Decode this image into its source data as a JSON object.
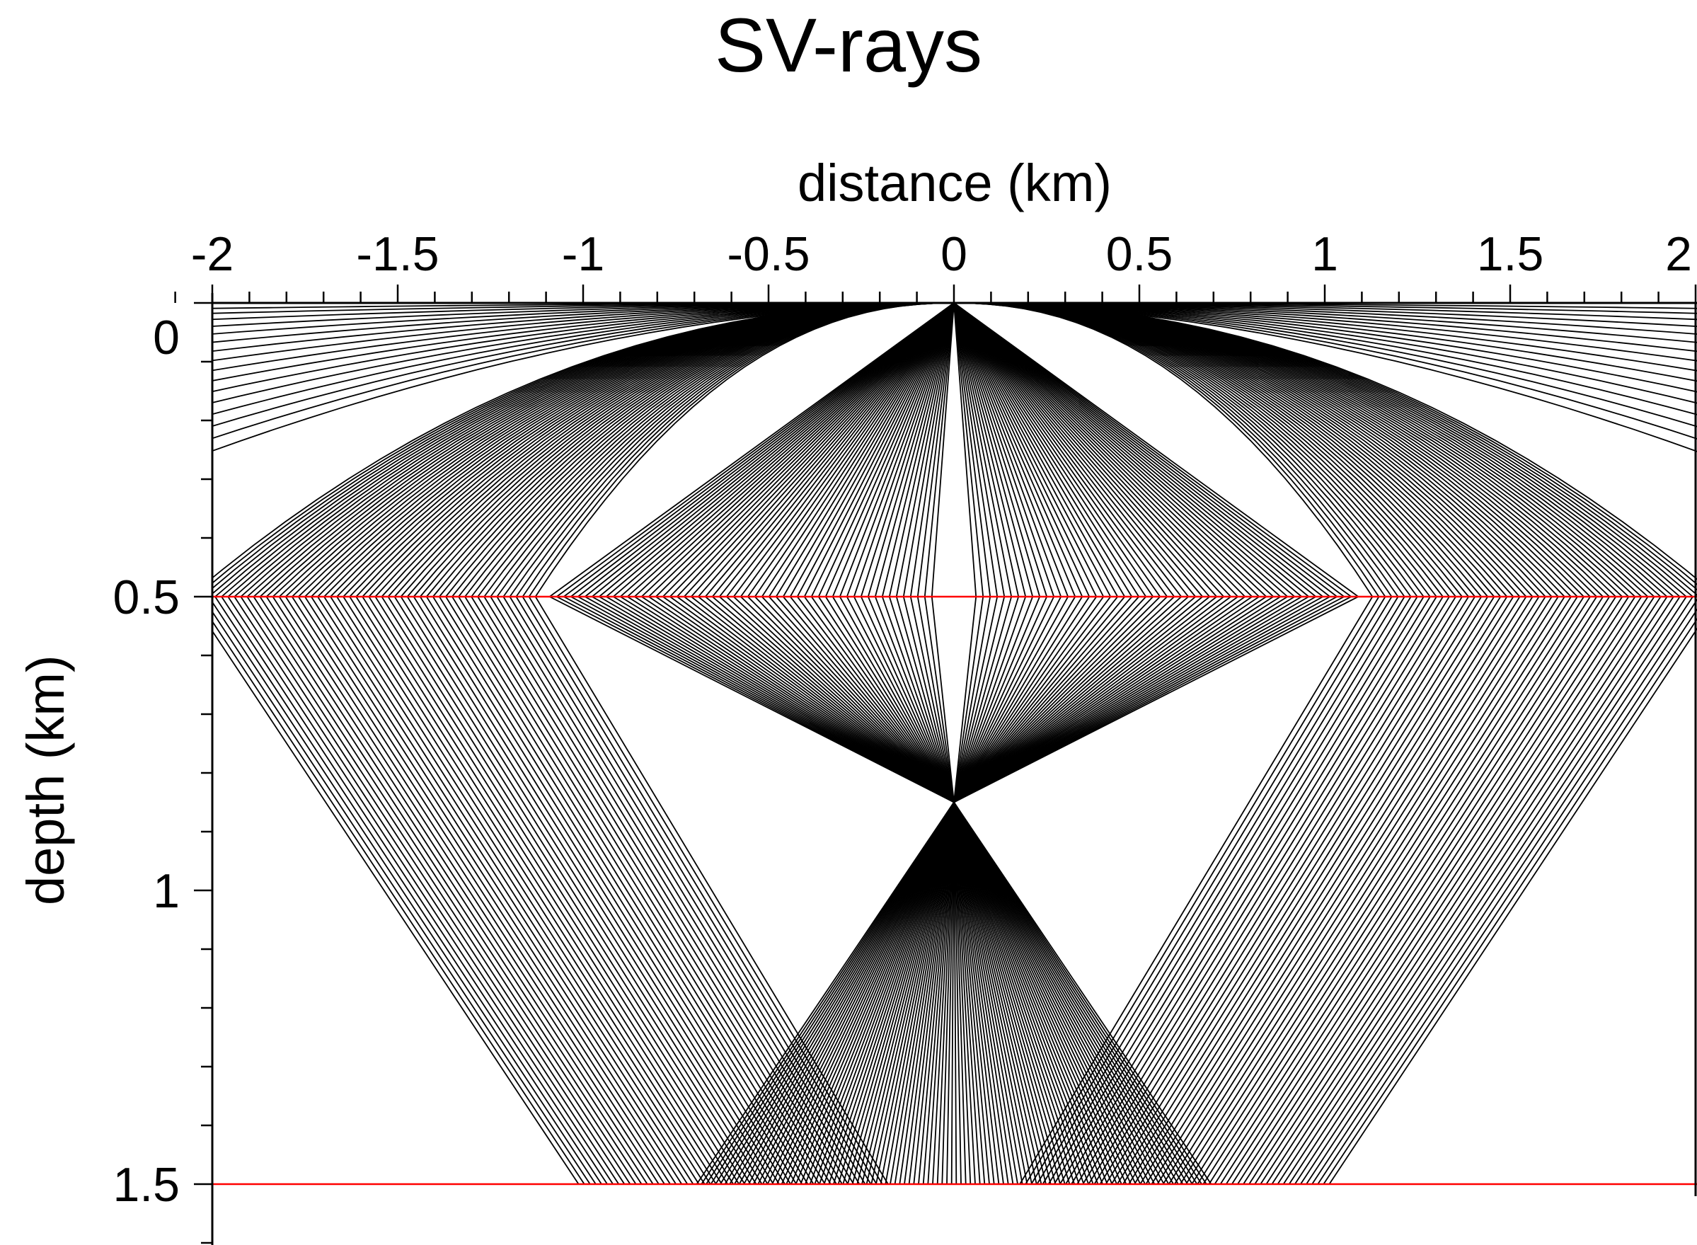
{
  "chart_data": {
    "type": "line",
    "title": "SV-rays",
    "xlabel": "distance (km)",
    "ylabel": "depth (km)",
    "xlim": [
      -2.1,
      2.0
    ],
    "ylim": [
      -0.02,
      1.6
    ],
    "x_axis_position": "top",
    "y_inverted": true,
    "x_ticks": [
      -2,
      -1.5,
      -1,
      -0.5,
      0,
      0.5,
      1,
      1.5,
      2
    ],
    "x_tick_labels": [
      "-2",
      "-1.5",
      "-1",
      "-0.5",
      "0",
      "0.5",
      "1",
      "1.5",
      "2"
    ],
    "y_ticks": [
      0,
      0.5,
      1,
      1.5
    ],
    "y_tick_labels": [
      "0",
      "0.5",
      "1",
      "1.5"
    ],
    "x_minor_step": 0.1,
    "y_minor_step": 0.1,
    "grid": false,
    "interfaces": [
      {
        "depth": 0.5,
        "color": "#ff0000"
      },
      {
        "depth": 1.5,
        "color": "#ff0000"
      }
    ],
    "ray_color": "#000000",
    "ray_fan": {
      "source": [
        0,
        0
      ],
      "focus": [
        0,
        0.85
      ],
      "focus_spread_at_base": 0.7,
      "steep_ray_count": 55,
      "shallow_ray_count": 55,
      "shallow_surface_bend_count": 16
    }
  }
}
